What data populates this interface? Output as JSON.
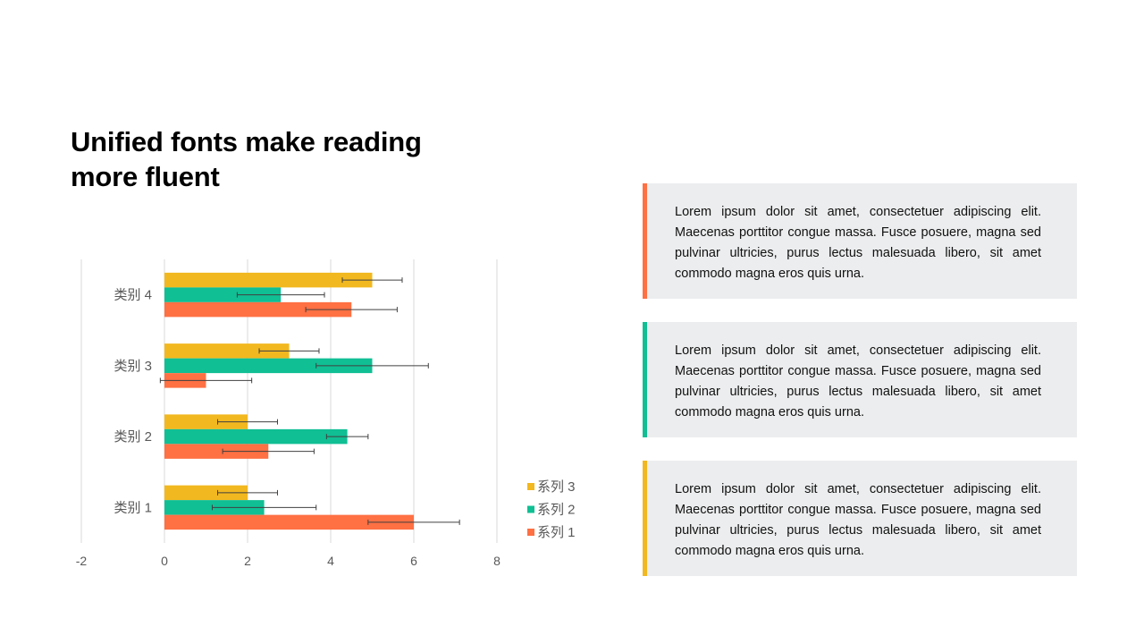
{
  "page": {
    "title_lines": [
      "Unified fonts make reading",
      "more fluent"
    ]
  },
  "chart_data": {
    "type": "bar",
    "orientation": "horizontal",
    "categories": [
      "类别 1",
      "类别 2",
      "类别 3",
      "类别 4"
    ],
    "series": [
      {
        "name": "系列 1",
        "color": "#ff7043",
        "values": [
          6,
          2.5,
          1,
          4.5
        ],
        "error": [
          1.1,
          1.1,
          1.1,
          1.1
        ]
      },
      {
        "name": "系列 2",
        "color": "#10bf94",
        "values": [
          2.4,
          4.4,
          5,
          2.8
        ],
        "error": [
          1.25,
          0.5,
          1.35,
          1.05
        ]
      },
      {
        "name": "系列 3",
        "color": "#f2b81f",
        "values": [
          2,
          2,
          3,
          5
        ],
        "error": [
          0.72,
          0.72,
          0.72,
          0.72
        ]
      }
    ],
    "xlim": [
      -2,
      8
    ],
    "xticks": [
      "-2",
      "0",
      "2",
      "4",
      "6",
      "8"
    ],
    "grid": true,
    "legend_position": "bottom-right"
  },
  "cards": [
    {
      "accent": "#ff7043",
      "text": "Lorem ipsum dolor sit amet, consectetuer adipiscing elit. Maecenas porttitor congue massa. Fusce posuere, magna sed pulvinar ultricies, purus lectus malesuada libero, sit amet commodo magna eros quis urna."
    },
    {
      "accent": "#10bf94",
      "text": "Lorem ipsum dolor sit amet, consectetuer adipiscing elit. Maecenas porttitor congue massa. Fusce posuere, magna sed pulvinar ultricies, purus lectus malesuada libero, sit amet commodo magna eros quis urna."
    },
    {
      "accent": "#f2b81f",
      "text": "Lorem ipsum dolor sit amet, consectetuer adipiscing elit. Maecenas porttitor congue massa. Fusce posuere, magna sed pulvinar ultricies, purus lectus malesuada libero, sit amet commodo magna eros quis urna."
    }
  ]
}
